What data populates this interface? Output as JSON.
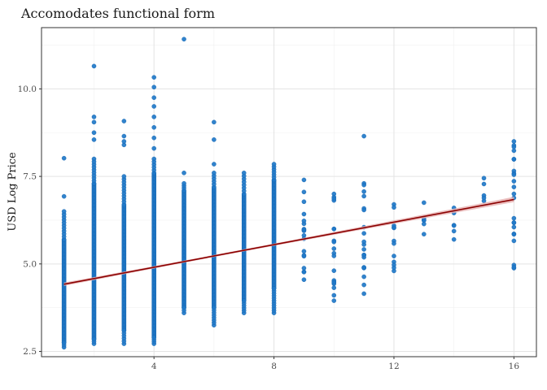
{
  "chart_data": {
    "type": "scatter",
    "title": "Accomodates functional form",
    "xlabel": "",
    "ylabel": "USD Log Price",
    "xlim": [
      0.25,
      16.75
    ],
    "ylim": [
      2.35,
      11.75
    ],
    "x_ticks": [
      4,
      8,
      12,
      16
    ],
    "x_tick_labels": [
      "4",
      "8",
      "12",
      "16"
    ],
    "y_ticks": [
      2.5,
      5.0,
      7.5,
      10.0
    ],
    "y_tick_labels": [
      "2.5",
      "5.0",
      "7.5",
      "10.0"
    ],
    "grid": true,
    "legend": "none",
    "point_color": "#1f78c8",
    "line_color": "#8b0000",
    "band_color": "#e8b4b4",
    "fit_line": {
      "x": [
        1,
        16
      ],
      "y": [
        4.42,
        6.84
      ]
    },
    "columns": [
      {
        "x": 1,
        "ymin": 2.62,
        "ymax": 6.5,
        "dense": [
          2.75,
          5.7
        ],
        "outliers": [
          6.93,
          8.02
        ]
      },
      {
        "x": 2,
        "ymin": 2.72,
        "ymax": 8.0,
        "dense": [
          2.85,
          7.3
        ],
        "outliers": [
          8.55,
          8.75,
          9.05,
          9.2,
          10.65
        ]
      },
      {
        "x": 3,
        "ymin": 2.72,
        "ymax": 7.5,
        "dense": [
          3.1,
          6.7
        ],
        "outliers": [
          8.4,
          8.5,
          8.65,
          9.08
        ]
      },
      {
        "x": 4,
        "ymin": 2.72,
        "ymax": 8.0,
        "dense": [
          2.9,
          7.6
        ],
        "outliers": [
          8.3,
          8.6,
          8.9,
          9.2,
          9.5,
          9.75,
          10.05,
          10.33
        ]
      },
      {
        "x": 5,
        "ymin": 3.6,
        "ymax": 7.3,
        "dense": [
          3.75,
          7.1
        ],
        "outliers": [
          7.6,
          11.42
        ]
      },
      {
        "x": 6,
        "ymin": 3.25,
        "ymax": 7.6,
        "dense": [
          3.75,
          7.2
        ],
        "outliers": [
          7.85,
          8.55,
          9.05
        ]
      },
      {
        "x": 7,
        "ymin": 3.6,
        "ymax": 7.6,
        "dense": [
          3.95,
          7.0
        ],
        "outliers": []
      },
      {
        "x": 8,
        "ymin": 3.6,
        "ymax": 7.85,
        "dense": [
          4.3,
          7.4
        ],
        "outliers": []
      },
      {
        "x": 9,
        "ymin": 4.55,
        "ymax": 7.4,
        "dense": [],
        "outliers": []
      },
      {
        "x": 10,
        "ymin": 3.95,
        "ymax": 7.0,
        "dense": [],
        "outliers": []
      },
      {
        "x": 11,
        "ymin": 4.15,
        "ymax": 7.3,
        "dense": [],
        "outliers": [
          8.65
        ]
      },
      {
        "x": 12,
        "ymin": 4.8,
        "ymax": 6.7,
        "dense": [],
        "outliers": []
      },
      {
        "x": 13,
        "ymin": 5.85,
        "ymax": 6.75,
        "dense": [],
        "outliers": []
      },
      {
        "x": 14,
        "ymin": 5.7,
        "ymax": 6.6,
        "dense": [],
        "outliers": []
      },
      {
        "x": 15,
        "ymin": 6.8,
        "ymax": 7.45,
        "dense": [],
        "outliers": []
      },
      {
        "x": 16,
        "ymin": 4.88,
        "ymax": 8.5,
        "dense": [],
        "outliers": []
      }
    ]
  }
}
